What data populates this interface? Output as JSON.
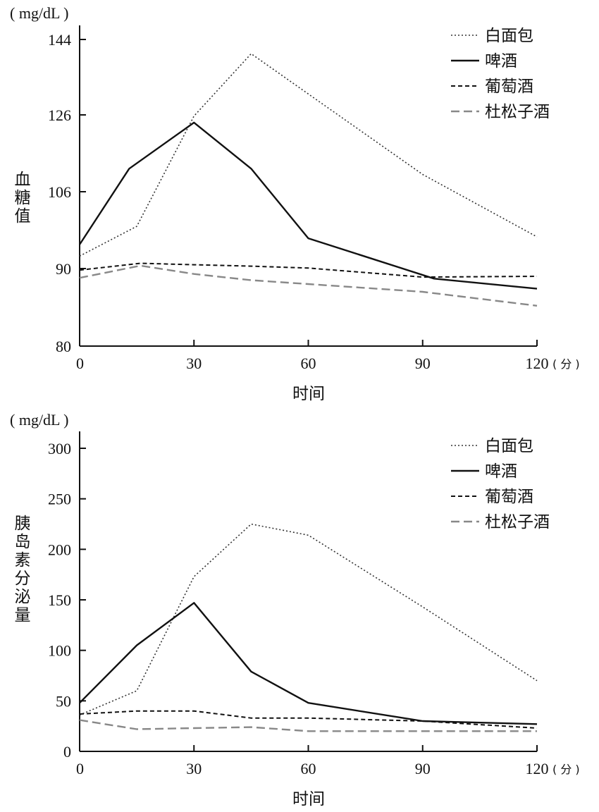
{
  "colors": {
    "axis": "#111111",
    "bread": "#333333",
    "beer": "#111111",
    "wine": "#111111",
    "gin": "#888888"
  },
  "chart_data": [
    {
      "type": "line",
      "unit": "( mg/dL )",
      "ylabel": "血糖值",
      "xlabel": "时间",
      "x_unit": "( 分 )",
      "ylim": [
        80,
        148
      ],
      "xlim": [
        0,
        120
      ],
      "yticks": [
        80,
        90,
        106,
        126,
        144
      ],
      "xticks": [
        0,
        30,
        60,
        90,
        120
      ],
      "legend_position": "top-right",
      "series": [
        {
          "name": "白面包",
          "style": "dotted",
          "x": [
            0,
            15,
            30,
            45,
            60,
            90,
            120
          ],
          "y": [
            92.6,
            98.8,
            125.7,
            140.6,
            131,
            110.5,
            96.6
          ]
        },
        {
          "name": "啤酒",
          "style": "solid",
          "x": [
            0,
            13,
            30,
            45,
            60,
            93,
            120
          ],
          "y": [
            95,
            112,
            124,
            112,
            96.3,
            88.7,
            87.4
          ]
        },
        {
          "name": "葡萄酒",
          "style": "dashed",
          "x": [
            0,
            16,
            30,
            45,
            60,
            90,
            120
          ],
          "y": [
            89.8,
            91.1,
            90.8,
            90.5,
            90.1,
            88.9,
            89
          ]
        },
        {
          "name": "杜松子酒",
          "style": "longdash",
          "x": [
            0,
            16,
            30,
            45,
            60,
            90,
            120
          ],
          "y": [
            88.8,
            90.6,
            89.3,
            88.5,
            88,
            87,
            85.2
          ]
        }
      ]
    },
    {
      "type": "line",
      "unit": "( mg/dL )",
      "ylabel": "胰岛素分泌量",
      "xlabel": "时间",
      "x_unit": "( 分 )",
      "ylim": [
        0,
        320
      ],
      "xlim": [
        0,
        120
      ],
      "yticks": [
        0,
        50,
        100,
        150,
        200,
        250,
        300
      ],
      "xticks": [
        0,
        30,
        60,
        90,
        120
      ],
      "legend_position": "top-right",
      "series": [
        {
          "name": "白面包",
          "style": "dotted",
          "x": [
            0,
            15,
            30,
            45,
            60,
            90,
            120
          ],
          "y": [
            36,
            60,
            173,
            225,
            214,
            143,
            70
          ]
        },
        {
          "name": "啤酒",
          "style": "solid",
          "x": [
            0,
            15,
            30,
            45,
            60,
            90,
            120
          ],
          "y": [
            48,
            105,
            147,
            79,
            48,
            30,
            27
          ]
        },
        {
          "name": "葡萄酒",
          "style": "dashed",
          "x": [
            0,
            15,
            30,
            45,
            60,
            90,
            120
          ],
          "y": [
            37,
            40,
            40,
            33,
            33,
            30,
            23
          ]
        },
        {
          "name": "杜松子酒",
          "style": "longdash",
          "x": [
            0,
            15,
            30,
            45,
            60,
            90,
            120
          ],
          "y": [
            31,
            22,
            23,
            24,
            20,
            20,
            20
          ]
        }
      ]
    }
  ]
}
